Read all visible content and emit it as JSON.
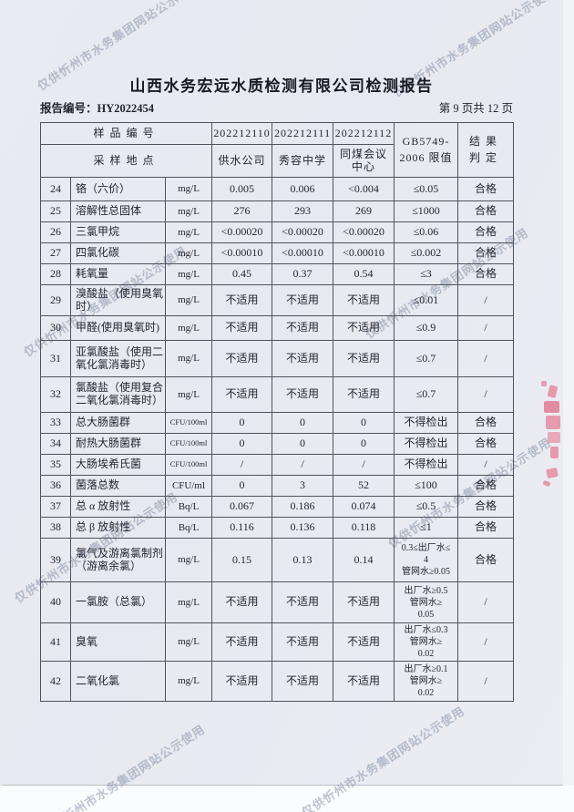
{
  "watermark": {
    "text": "仅供忻州市水务集团网站公示使用"
  },
  "header": {
    "title": "山西水务宏远水质检测有限公司检测报告",
    "report_no": "报告编号：HY2022454",
    "page_indicator": "第 9 页共 12 页"
  },
  "table": {
    "header": {
      "row1_label": "样品编号",
      "sample_ids": [
        "202212110",
        "202212111",
        "202212112"
      ],
      "standard_line1": "GB5749-",
      "standard_line2": "2006 限值",
      "result_line1": "结果",
      "result_line2": "判定",
      "row2_label": "采样地点",
      "locations": [
        "供水公司",
        "秀容中学",
        "同煤会议\n中心"
      ]
    },
    "rows": [
      {
        "no": "24",
        "item": "铬（六价）",
        "unit": "mg/L",
        "values": [
          "0.005",
          "0.006",
          "<0.004"
        ],
        "limit": "≤0.05",
        "result": "合格"
      },
      {
        "no": "25",
        "item": "溶解性总固体",
        "unit": "mg/L",
        "values": [
          "276",
          "293",
          "269"
        ],
        "limit": "≤1000",
        "result": "合格"
      },
      {
        "no": "26",
        "item": "三氯甲烷",
        "unit": "mg/L",
        "values": [
          "<0.00020",
          "<0.00020",
          "<0.00020"
        ],
        "limit": "≤0.06",
        "result": "合格"
      },
      {
        "no": "27",
        "item": "四氯化碳",
        "unit": "mg/L",
        "values": [
          "<0.00010",
          "<0.00010",
          "<0.00010"
        ],
        "limit": "≤0.002",
        "result": "合格"
      },
      {
        "no": "28",
        "item": "耗氧量",
        "unit": "mg/L",
        "values": [
          "0.45",
          "0.37",
          "0.54"
        ],
        "limit": "≤3",
        "result": "合格"
      },
      {
        "no": "29",
        "item": "溴酸盐（使用臭氧时）",
        "unit": "mg/L",
        "values": [
          "不适用",
          "不适用",
          "不适用"
        ],
        "limit": "≤0.01",
        "result": "/"
      },
      {
        "no": "30",
        "item": "甲醛(使用臭氧时)",
        "unit": "mg/L",
        "values": [
          "不适用",
          "不适用",
          "不适用"
        ],
        "limit": "≤0.9",
        "result": "/"
      },
      {
        "no": "31",
        "item": "亚氯酸盐（使用二氧化氯消毒时）",
        "unit": "mg/L",
        "values": [
          "不适用",
          "不适用",
          "不适用"
        ],
        "limit": "≤0.7",
        "result": "/"
      },
      {
        "no": "32",
        "item": "氯酸盐（使用复合二氧化氯消毒时）",
        "unit": "mg/L",
        "values": [
          "不适用",
          "不适用",
          "不适用"
        ],
        "limit": "≤0.7",
        "result": "/"
      },
      {
        "no": "33",
        "item": "总大肠菌群",
        "unit": "CFU/100ml",
        "values": [
          "0",
          "0",
          "0"
        ],
        "limit": "不得检出",
        "result": "合格"
      },
      {
        "no": "34",
        "item": "耐热大肠菌群",
        "unit": "CFU/100ml",
        "values": [
          "0",
          "0",
          "0"
        ],
        "limit": "不得检出",
        "result": "合格"
      },
      {
        "no": "35",
        "item": "大肠埃希氏菌",
        "unit": "CFU/100ml",
        "values": [
          "/",
          "/",
          "/"
        ],
        "limit": "不得检出",
        "result": "/"
      },
      {
        "no": "36",
        "item": "菌落总数",
        "unit": "CFU/ml",
        "values": [
          "0",
          "3",
          "52"
        ],
        "limit": "≤100",
        "result": "合格"
      },
      {
        "no": "37",
        "item": "总 α 放射性",
        "unit": "Bq/L",
        "values": [
          "0.067",
          "0.186",
          "0.074"
        ],
        "limit": "≤0.5",
        "result": "合格"
      },
      {
        "no": "38",
        "item": "总 β 放射性",
        "unit": "Bq/L",
        "values": [
          "0.116",
          "0.136",
          "0.118"
        ],
        "limit": "≤1",
        "result": "合格"
      },
      {
        "no": "39",
        "item": "氯气及游离氯制剂（游离余氯）",
        "unit": "mg/L",
        "values": [
          "0.15",
          "0.13",
          "0.14"
        ],
        "limit": "0.3≤出厂水≤\n4\n管网水≥0.05",
        "result": "合格"
      },
      {
        "no": "40",
        "item": "一氯胺（总氯）",
        "unit": "mg/L",
        "values": [
          "不适用",
          "不适用",
          "不适用"
        ],
        "limit": "出厂水≥0.5\n管网水≥\n0.05",
        "result": "/"
      },
      {
        "no": "41",
        "item": "臭氧",
        "unit": "mg/L",
        "values": [
          "不适用",
          "不适用",
          "不适用"
        ],
        "limit": "出厂水≤0.3\n管网水≥\n0.02",
        "result": "/"
      },
      {
        "no": "42",
        "item": "二氧化氯",
        "unit": "mg/L",
        "values": [
          "不适用",
          "不适用",
          "不适用"
        ],
        "limit": "出厂水≥0.1\n管网水≥\n0.02",
        "result": "/"
      }
    ]
  },
  "colors": {
    "paper": "#e9ebf2",
    "border": "#50535b",
    "watermark": "#7a869c",
    "seal": "#e25876"
  }
}
